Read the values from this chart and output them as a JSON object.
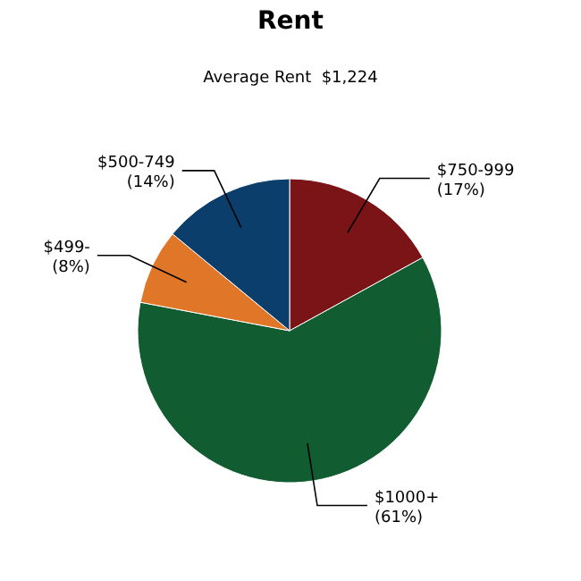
{
  "chart_data": {
    "type": "pie",
    "title": "Rent",
    "subtitle": "Average Rent  $1,224",
    "categories": [
      "$750-999",
      "$1000+",
      "$499-",
      "$500-749"
    ],
    "values": [
      17,
      61,
      8,
      14
    ],
    "value_labels": [
      "(17%)",
      "(61%)",
      "(8%)",
      "(14%)"
    ],
    "colors": [
      "#7b1416",
      "#125c32",
      "#e07628",
      "#0c3e6b"
    ]
  }
}
